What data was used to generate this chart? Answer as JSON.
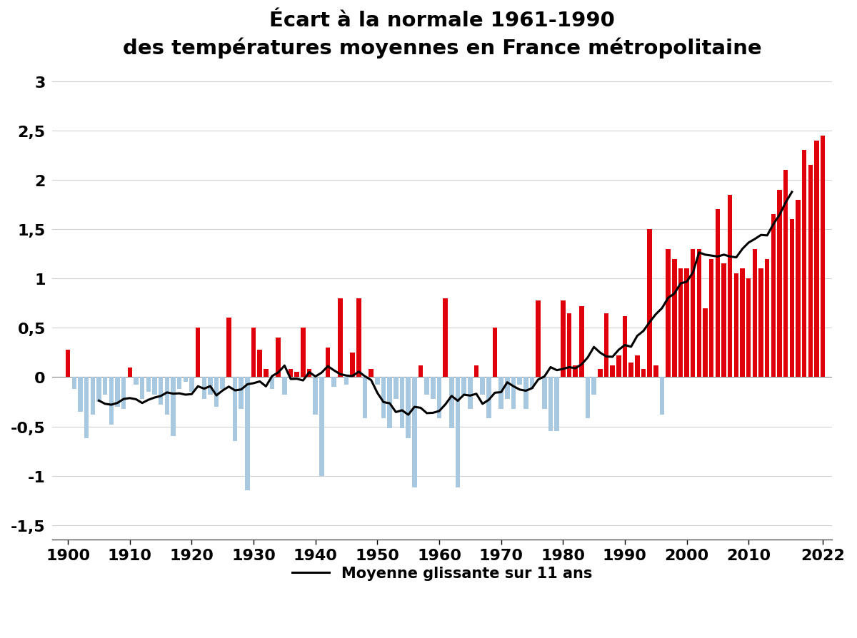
{
  "title_line1": "Écart à la normale 1961-1990",
  "title_line2": "des températures moyennes en France métropolitaine",
  "legend_label": "Moyenne glissante sur 11 ans",
  "years": [
    1900,
    1901,
    1902,
    1903,
    1904,
    1905,
    1906,
    1907,
    1908,
    1909,
    1910,
    1911,
    1912,
    1913,
    1914,
    1915,
    1916,
    1917,
    1918,
    1919,
    1920,
    1921,
    1922,
    1923,
    1924,
    1925,
    1926,
    1927,
    1928,
    1929,
    1930,
    1931,
    1932,
    1933,
    1934,
    1935,
    1936,
    1937,
    1938,
    1939,
    1940,
    1941,
    1942,
    1943,
    1944,
    1945,
    1946,
    1947,
    1948,
    1949,
    1950,
    1951,
    1952,
    1953,
    1954,
    1955,
    1956,
    1957,
    1958,
    1959,
    1960,
    1961,
    1962,
    1963,
    1964,
    1965,
    1966,
    1967,
    1968,
    1969,
    1970,
    1971,
    1972,
    1973,
    1974,
    1975,
    1976,
    1977,
    1978,
    1979,
    1980,
    1981,
    1982,
    1983,
    1984,
    1985,
    1986,
    1987,
    1988,
    1989,
    1990,
    1991,
    1992,
    1993,
    1994,
    1995,
    1996,
    1997,
    1998,
    1999,
    2000,
    2001,
    2002,
    2003,
    2004,
    2005,
    2006,
    2007,
    2008,
    2009,
    2010,
    2011,
    2012,
    2013,
    2014,
    2015,
    2016,
    2017,
    2018,
    2019,
    2020,
    2021,
    2022
  ],
  "values": [
    0.28,
    -0.12,
    -0.35,
    -0.62,
    -0.38,
    -0.25,
    -0.18,
    -0.48,
    -0.3,
    -0.32,
    0.1,
    -0.08,
    -0.22,
    -0.15,
    -0.18,
    -0.28,
    -0.38,
    -0.6,
    -0.12,
    -0.05,
    -0.15,
    0.5,
    -0.22,
    -0.18,
    -0.3,
    -0.12,
    0.6,
    -0.65,
    -0.32,
    -1.15,
    0.5,
    0.28,
    0.08,
    -0.12,
    0.4,
    -0.18,
    0.08,
    0.05,
    0.5,
    0.08,
    -0.38,
    -1.0,
    0.3,
    -0.1,
    0.8,
    -0.08,
    0.25,
    0.8,
    -0.42,
    0.08,
    -0.08,
    -0.42,
    -0.52,
    -0.22,
    -0.52,
    -0.62,
    -1.12,
    0.12,
    -0.18,
    -0.22,
    -0.42,
    0.8,
    -0.52,
    -1.12,
    -0.18,
    -0.32,
    0.12,
    -0.18,
    -0.42,
    0.5,
    -0.32,
    -0.22,
    -0.32,
    -0.08,
    -0.32,
    -0.12,
    0.78,
    -0.32,
    -0.55,
    -0.55,
    0.78,
    0.65,
    0.12,
    0.72,
    -0.42,
    -0.18,
    0.08,
    0.65,
    0.12,
    0.22,
    0.62,
    0.15,
    0.22,
    0.08,
    1.5,
    0.12,
    -0.38,
    1.3,
    1.2,
    1.1,
    1.1,
    1.3,
    1.3,
    0.7,
    1.2,
    1.7,
    1.15,
    1.85,
    1.05,
    1.1,
    1.0,
    1.3,
    1.1,
    1.2,
    1.65,
    1.9,
    2.1,
    1.6,
    1.8,
    2.3,
    2.15,
    2.4,
    2.45
  ],
  "ylim": [
    -1.65,
    3.1
  ],
  "yticks": [
    -1.5,
    -1.0,
    -0.5,
    0.0,
    0.5,
    1.0,
    1.5,
    2.0,
    2.5,
    3.0
  ],
  "xticks": [
    1900,
    1910,
    1920,
    1930,
    1940,
    1950,
    1960,
    1970,
    1980,
    1990,
    2000,
    2010,
    2022
  ],
  "color_positive": "#e0000a",
  "color_negative": "#a8c8e0",
  "line_color": "#000000",
  "background_color": "#ffffff",
  "grid_color": "#d0d0d0",
  "title_fontsize": 21,
  "tick_fontsize": 16,
  "legend_fontsize": 15
}
